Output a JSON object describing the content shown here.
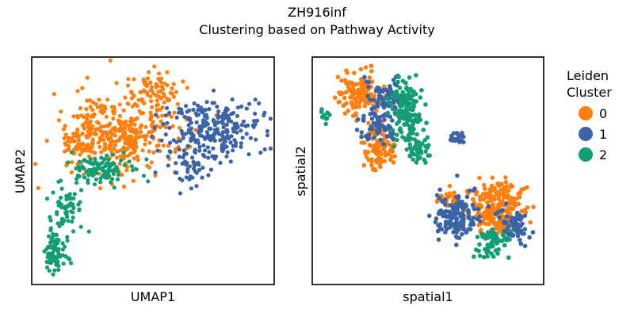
{
  "figure": {
    "title_line1": "ZH916inf",
    "title_line2": "Clustering based on Pathway Activity"
  },
  "legend": {
    "title_line1": "Leiden",
    "title_line2": "Cluster",
    "placement": "right",
    "entries": [
      {
        "label": "0",
        "color": "#ff7f0e"
      },
      {
        "label": "1",
        "color": "#3b64a8"
      },
      {
        "label": "2",
        "color": "#129e72"
      }
    ]
  },
  "chart_data": [
    {
      "type": "scatter",
      "xlabel": "UMAP1",
      "ylabel": "UMAP2",
      "title": "",
      "grid": false,
      "ticks": "none",
      "xlim": [
        0,
        100
      ],
      "ylim": [
        0,
        100
      ],
      "clusters": [
        {
          "name": "0",
          "color": "#ff7f0e",
          "regions": [
            {
              "cx": 36,
              "cy": 67,
              "rx": 21,
              "ry": 17,
              "n": 360
            },
            {
              "cx": 50,
              "cy": 85,
              "rx": 10,
              "ry": 8,
              "n": 70
            },
            {
              "cx": 20,
              "cy": 62,
              "rx": 6,
              "ry": 6,
              "n": 40
            }
          ]
        },
        {
          "name": "1",
          "color": "#3b64a8",
          "regions": [
            {
              "cx": 74,
              "cy": 68,
              "rx": 17,
              "ry": 12,
              "n": 240
            },
            {
              "cx": 64,
              "cy": 52,
              "rx": 10,
              "ry": 9,
              "n": 50
            }
          ]
        },
        {
          "name": "2",
          "color": "#129e72",
          "regions": [
            {
              "cx": 10,
              "cy": 14,
              "rx": 5,
              "ry": 8,
              "n": 80
            },
            {
              "cx": 15,
              "cy": 33,
              "rx": 6,
              "ry": 9,
              "n": 60
            },
            {
              "cx": 28,
              "cy": 50,
              "rx": 13,
              "ry": 7,
              "n": 110
            }
          ]
        }
      ]
    },
    {
      "type": "scatter",
      "xlabel": "spatial1",
      "ylabel": "spatial2",
      "title": "",
      "grid": false,
      "ticks": "none",
      "xlim": [
        0,
        100
      ],
      "ylim": [
        0,
        100
      ],
      "clusters": [
        {
          "name": "0",
          "color": "#ff7f0e",
          "regions": [
            {
              "cx": 21,
              "cy": 84,
              "rx": 8,
              "ry": 9,
              "n": 130
            },
            {
              "cx": 29,
              "cy": 61,
              "rx": 7,
              "ry": 9,
              "n": 100
            },
            {
              "cx": 80,
              "cy": 33,
              "rx": 11,
              "ry": 11,
              "n": 230
            },
            {
              "cx": 60,
              "cy": 37,
              "rx": 5,
              "ry": 4,
              "n": 30
            }
          ]
        },
        {
          "name": "1",
          "color": "#3b64a8",
          "regions": [
            {
              "cx": 32,
              "cy": 82,
              "rx": 7,
              "ry": 8,
              "n": 80
            },
            {
              "cx": 28,
              "cy": 70,
              "rx": 8,
              "ry": 7,
              "n": 60
            },
            {
              "cx": 62,
              "cy": 30,
              "rx": 8,
              "ry": 10,
              "n": 140
            },
            {
              "cx": 87,
              "cy": 26,
              "rx": 6,
              "ry": 7,
              "n": 60
            },
            {
              "cx": 62,
              "cy": 65,
              "rx": 3,
              "ry": 3,
              "n": 20
            }
          ]
        },
        {
          "name": "2",
          "color": "#129e72",
          "regions": [
            {
              "cx": 41,
              "cy": 76,
              "rx": 6,
              "ry": 13,
              "n": 140
            },
            {
              "cx": 46,
              "cy": 58,
              "rx": 5,
              "ry": 6,
              "n": 40
            },
            {
              "cx": 77,
              "cy": 18,
              "rx": 6,
              "ry": 6,
              "n": 70
            },
            {
              "cx": 6,
              "cy": 75,
              "rx": 3,
              "ry": 3,
              "n": 10
            }
          ]
        }
      ]
    }
  ]
}
